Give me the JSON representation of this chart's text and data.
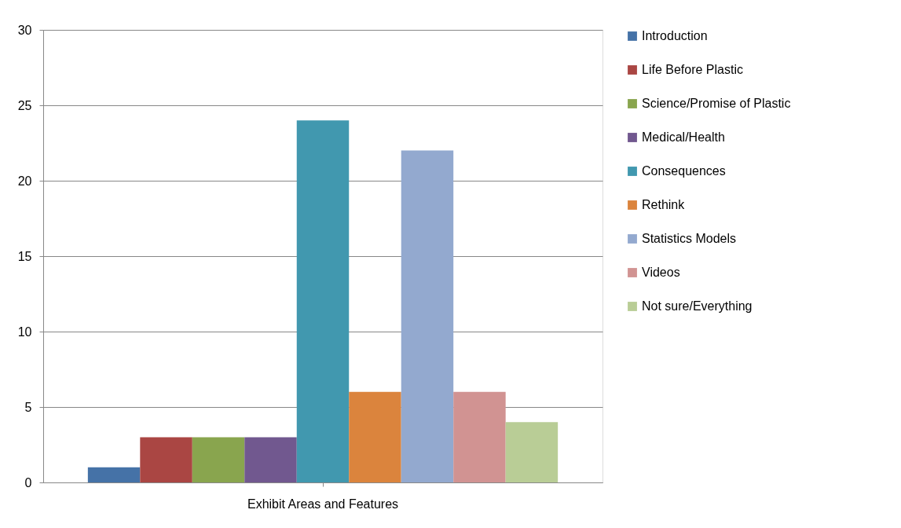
{
  "chart_data": {
    "type": "bar",
    "categories": [
      "Exhibit Areas and Features"
    ],
    "series": [
      {
        "name": "Introduction",
        "color": "#4572a7",
        "values": [
          1
        ]
      },
      {
        "name": "Life Before Plastic",
        "color": "#aa4643",
        "values": [
          3
        ]
      },
      {
        "name": "Science/Promise of Plastic",
        "color": "#89a54e",
        "values": [
          3
        ]
      },
      {
        "name": "Medical/Health",
        "color": "#71588f",
        "values": [
          3
        ]
      },
      {
        "name": "Consequences",
        "color": "#4198af",
        "values": [
          24
        ]
      },
      {
        "name": "Rethink",
        "color": "#db843d",
        "values": [
          6
        ]
      },
      {
        "name": "Statistics Models",
        "color": "#93a9cf",
        "values": [
          22
        ]
      },
      {
        "name": "Videos",
        "color": "#d19392",
        "values": [
          6
        ]
      },
      {
        "name": "Not sure/Everything",
        "color": "#b9cd96",
        "values": [
          4
        ]
      }
    ],
    "ylim": [
      0,
      30
    ],
    "yticks": [
      0,
      5,
      10,
      15,
      20,
      25,
      30
    ],
    "grid": "y",
    "legend": "right"
  }
}
